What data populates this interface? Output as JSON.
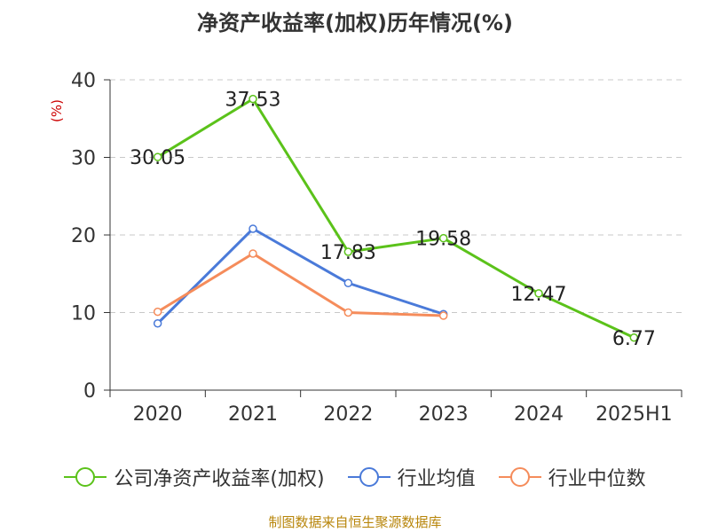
{
  "title": "净资产收益率(加权)历年情况(%)",
  "source": "制图数据来自恒生聚源数据库",
  "chart_data": {
    "type": "line",
    "categories": [
      "2020",
      "2021",
      "2022",
      "2023",
      "2024",
      "2025H1"
    ],
    "ylabel": "(%)",
    "ylim": [
      0,
      40
    ],
    "yticks": [
      0,
      10,
      20,
      30,
      40
    ],
    "grid": true,
    "legend_position": "bottom",
    "series": [
      {
        "name": "公司净资产收益率(加权)",
        "color": "#5bc21a",
        "values": [
          30.05,
          37.53,
          17.83,
          19.58,
          12.47,
          6.77
        ],
        "labels": [
          "30.05",
          "37.53",
          "17.83",
          "19.58",
          "12.47",
          "6.77"
        ]
      },
      {
        "name": "行业均值",
        "color": "#4a7ad9",
        "values": [
          8.6,
          20.8,
          13.8,
          9.8,
          null,
          null
        ]
      },
      {
        "name": "行业中位数",
        "color": "#f58c5b",
        "values": [
          10.1,
          17.6,
          10.0,
          9.6,
          null,
          null
        ]
      }
    ]
  }
}
